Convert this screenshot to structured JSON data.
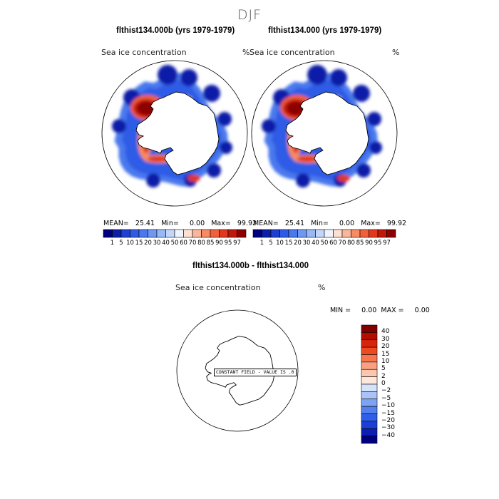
{
  "figure": {
    "season": "DJF",
    "left_panel_title": "flthist134.000b (yrs 1979-1979)",
    "right_panel_title": "flthist134.000 (yrs 1979-1979)",
    "diff_title": "flthist134.000b - flthist134.000"
  },
  "panels": {
    "variable": "Sea ice concentration",
    "unit": "%",
    "left_stats": "MEAN=   25.41   Min=     0.00   Max=   99.92",
    "right_stats": "MEAN=   25.41   Min=     0.00   Max=   99.92",
    "diff_stats": "MIN =     0.00  MAX =     0.00",
    "constant_field_message": "CONSTANT FIELD - VALUE IS .0"
  },
  "chart_data": [
    {
      "type": "heatmap",
      "title": "flthist134.000b (yrs 1979-1979)",
      "variable": "Sea ice concentration",
      "unit": "%",
      "projection": "south polar stereographic",
      "stats": {
        "mean": 25.41,
        "min": 0.0,
        "max": 99.92
      },
      "levels": [
        1,
        5,
        10,
        15,
        20,
        30,
        40,
        50,
        60,
        70,
        80,
        85,
        90,
        95,
        97
      ],
      "colors": [
        "#00007f",
        "#0d1fa8",
        "#1f3fcf",
        "#2e5be6",
        "#4a78ee",
        "#6e98f2",
        "#98b8f6",
        "#c3d6fa",
        "#eef4fd",
        "#fde0d2",
        "#fab59a",
        "#f78b64",
        "#f0603b",
        "#e0391c",
        "#c1170a",
        "#8c0000"
      ]
    },
    {
      "type": "heatmap",
      "title": "flthist134.000 (yrs 1979-1979)",
      "variable": "Sea ice concentration",
      "unit": "%",
      "projection": "south polar stereographic",
      "stats": {
        "mean": 25.41,
        "min": 0.0,
        "max": 99.92
      },
      "levels": [
        1,
        5,
        10,
        15,
        20,
        30,
        40,
        50,
        60,
        70,
        80,
        85,
        90,
        95,
        97
      ],
      "colors": [
        "#00007f",
        "#0d1fa8",
        "#1f3fcf",
        "#2e5be6",
        "#4a78ee",
        "#6e98f2",
        "#98b8f6",
        "#c3d6fa",
        "#eef4fd",
        "#fde0d2",
        "#fab59a",
        "#f78b64",
        "#f0603b",
        "#e0391c",
        "#c1170a",
        "#8c0000"
      ]
    },
    {
      "type": "heatmap",
      "title": "flthist134.000b - flthist134.000",
      "variable": "Sea ice concentration",
      "unit": "%",
      "projection": "south polar stereographic",
      "stats": {
        "min": 0.0,
        "max": 0.0
      },
      "levels": [
        -40,
        -30,
        -20,
        -15,
        -10,
        -5,
        -2,
        0,
        2,
        5,
        10,
        15,
        20,
        30,
        40
      ],
      "colors": [
        "#00007f",
        "#0b20b0",
        "#1b3fd2",
        "#2f5fe8",
        "#5281ef",
        "#7ea3f3",
        "#a9c3f8",
        "#d4e2fb",
        "#fde6da",
        "#fbc7b0",
        "#f9a080",
        "#f67650",
        "#ee4a22",
        "#d9240a",
        "#b30d00",
        "#800000"
      ]
    }
  ]
}
